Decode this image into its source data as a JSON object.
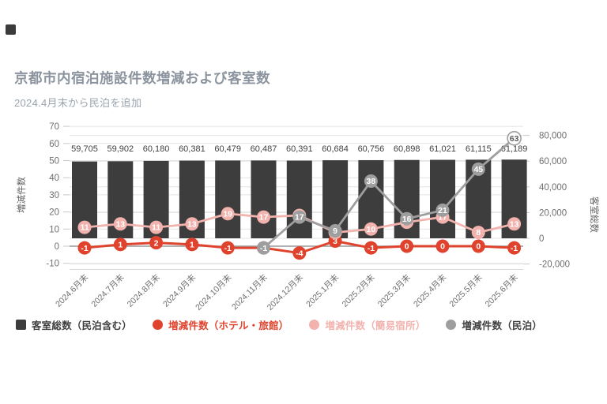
{
  "header": {
    "title": "京都市内宿泊施設件数増減および客室数",
    "subtitle": "2024.4月末から民泊を追加",
    "title_color": "#8b949e",
    "subtitle_color": "#9aa3ac"
  },
  "chart_data": {
    "type": "combo",
    "categories": [
      "2024.6月末",
      "2024.7月末",
      "2024.8月末",
      "2024.9月末",
      "2024.10月末",
      "2024.11月末",
      "2024.12月末",
      "2025.1月末",
      "2025.2月末",
      "2025.3月末",
      "2025.4月末",
      "2025.5月末",
      "2025.6月末"
    ],
    "left_axis": {
      "title": "増減件数",
      "ticks": [
        70,
        60,
        50,
        40,
        30,
        20,
        10,
        0,
        -10
      ],
      "range": [
        -10,
        70
      ]
    },
    "right_axis": {
      "title": "客室総数",
      "ticks": [
        80000,
        60000,
        40000,
        20000,
        0,
        -20000
      ],
      "range": [
        -20000,
        80000
      ]
    },
    "bar_series": {
      "name": "客室総数（民泊含む）",
      "color": "#3d3d3d",
      "axis": "right",
      "values": [
        59705,
        59902,
        60180,
        60381,
        60479,
        60487,
        60391,
        60684,
        60756,
        60898,
        61021,
        61115,
        61189
      ]
    },
    "line_series": [
      {
        "name": "増減件数（ホテル・旅館）",
        "color": "#e0432d",
        "axis": "left",
        "values": [
          -1,
          1,
          2,
          1,
          -1,
          -1,
          -4,
          3,
          -1,
          0,
          0,
          0,
          -1
        ]
      },
      {
        "name": "増減件数（簡易宿所）",
        "color": "#f2b3ae",
        "axis": "left",
        "values": [
          11,
          13,
          11,
          13,
          19,
          17,
          18,
          8,
          10,
          14,
          17,
          8,
          13
        ]
      },
      {
        "name": "増減件数（民泊）",
        "color": "#9e9e9e",
        "axis": "left",
        "values": [
          null,
          null,
          null,
          null,
          null,
          -1,
          17,
          9,
          38,
          16,
          21,
          45,
          63
        ],
        "last_label_outlined": true
      }
    ],
    "grid_color": "#e4e4e4",
    "zero_line_color": "#999999",
    "tick_label_color": "#6e6e6e",
    "bar_label_color": "#3f3f3f",
    "legend": [
      {
        "label": "客室総数（民泊含む）",
        "marker": "square-swatch",
        "color": "#3d3d3d",
        "text_color": "#3f3f3f"
      },
      {
        "label": "増減件数（ホテル・旅館）",
        "marker": "circle-swatch",
        "color": "#e0432d",
        "text_color": "#e0432d"
      },
      {
        "label": "増減件数（簡易宿所）",
        "marker": "circle-swatch",
        "color": "#f2b3ae",
        "text_color": "#f2b3ae"
      },
      {
        "label": "増減件数（民泊）",
        "marker": "circle-swatch",
        "color": "#9e9e9e",
        "text_color": "#3f3f3f"
      }
    ]
  }
}
